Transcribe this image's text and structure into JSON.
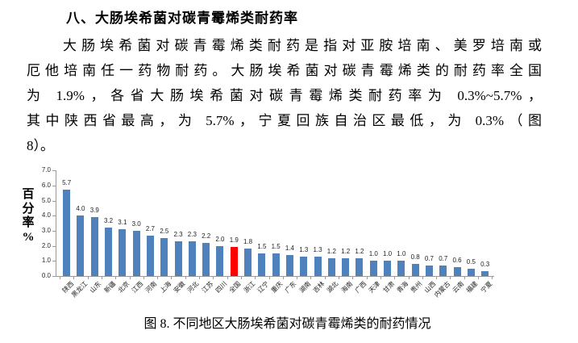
{
  "page": {
    "heading": "八、大肠埃希菌对碳青霉烯类耐药率",
    "paragraph_lines": [
      "大肠埃希菌对碳青霉烯类耐药是指对亚胺培南、美罗培南或",
      "厄他培南任一药物耐药。大肠埃希菌对碳青霉烯类的耐药率全国",
      "为 1.9%，各省大肠埃希菌对碳青霉烯类耐药率为 0.3%~5.7%，",
      "其中陕西省最高，为 5.7%，宁夏回族自治区最低，为 0.3%（图",
      "8）。"
    ],
    "caption": "图 8. 不同地区大肠埃希菌对碳青霉烯类的耐药情况"
  },
  "chart_data": {
    "type": "bar",
    "title": "",
    "xlabel": "",
    "ylabel": "百分率%",
    "ylabel_stacked": [
      "百",
      "分",
      "率",
      "%"
    ],
    "ylim": [
      0,
      7
    ],
    "ytick_interval": 1.0,
    "ytick_labels": [
      "0.0",
      "1.0",
      "2.0",
      "3.0",
      "4.0",
      "5.0",
      "6.0",
      "7.0"
    ],
    "grid": false,
    "legend": "none",
    "bar_color": "#4F81BD",
    "highlight_color": "#FF0000",
    "highlight_index": 12,
    "highlight_category": "全国",
    "categories": [
      "陕西",
      "黑龙江",
      "山东",
      "新疆",
      "北京",
      "江西",
      "河南",
      "上海",
      "安徽",
      "河北",
      "江苏",
      "四川",
      "全国",
      "浙江",
      "辽宁",
      "重庆",
      "广东",
      "湖南",
      "吉林",
      "湖北",
      "海南",
      "广西",
      "天津",
      "甘肃",
      "青海",
      "贵州",
      "山西",
      "内蒙古",
      "云南",
      "福建",
      "宁夏"
    ],
    "values": [
      5.7,
      4.0,
      3.9,
      3.2,
      3.1,
      3.0,
      2.7,
      2.5,
      2.3,
      2.3,
      2.2,
      2.0,
      1.9,
      1.8,
      1.5,
      1.5,
      1.4,
      1.3,
      1.3,
      1.2,
      1.2,
      1.2,
      1.0,
      1.0,
      1.0,
      0.8,
      0.7,
      0.7,
      0.6,
      0.5,
      0.3
    ],
    "value_labels": [
      "5.7",
      "4.0",
      "3.9",
      "3.2",
      "3.1",
      "3.0",
      "2.7",
      "2.5",
      "2.3",
      "2.3",
      "2.2",
      "2.0",
      "1.9",
      "1.8",
      "1.5",
      "1.5",
      "1.4",
      "1.3",
      "1.3",
      "1.2",
      "1.2",
      "1.2",
      "1.0",
      "1.0",
      "1.0",
      "0.8",
      "0.7",
      "0.7",
      "0.6",
      "0.5",
      "0.3"
    ]
  }
}
